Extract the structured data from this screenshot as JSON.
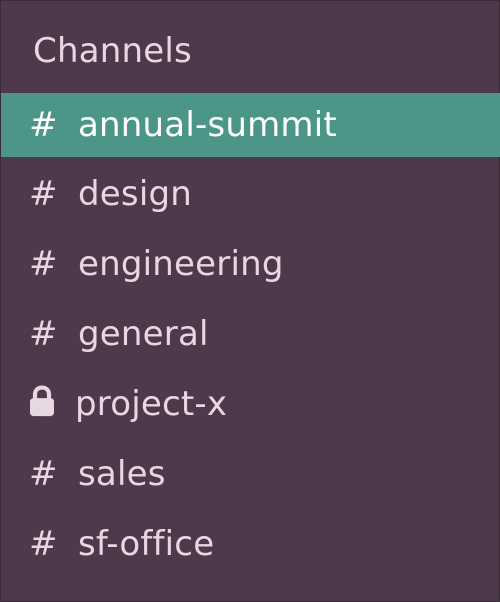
{
  "sidebar": {
    "section_title": "Channels",
    "colors": {
      "background": "#4d394b",
      "active": "#4c9689",
      "text": "#e6d7e3",
      "active_text": "#ffffff"
    },
    "channels": [
      {
        "prefix": "#",
        "label": "annual-summit",
        "active": true,
        "icon": "hash-icon"
      },
      {
        "prefix": "#",
        "label": "design",
        "active": false,
        "icon": "hash-icon"
      },
      {
        "prefix": "#",
        "label": "engineering",
        "active": false,
        "icon": "hash-icon"
      },
      {
        "prefix": "#",
        "label": "general",
        "active": false,
        "icon": "hash-icon"
      },
      {
        "prefix": "",
        "label": "project-x",
        "active": false,
        "icon": "lock-icon"
      },
      {
        "prefix": "#",
        "label": "sales",
        "active": false,
        "icon": "hash-icon"
      },
      {
        "prefix": "#",
        "label": "sf-office",
        "active": false,
        "icon": "hash-icon"
      }
    ]
  }
}
